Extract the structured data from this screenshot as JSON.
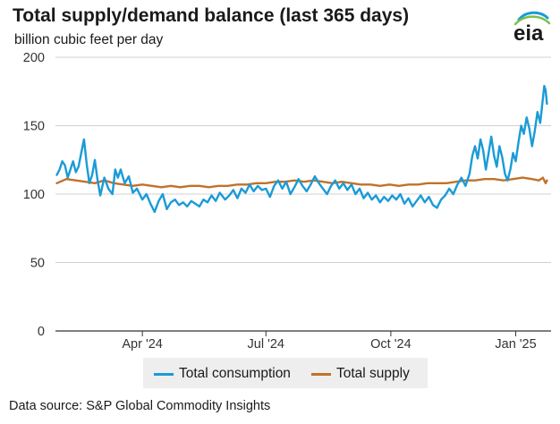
{
  "header": {
    "title": "Total supply/demand balance (last 365 days)",
    "subtitle": "billion cubic feet per day",
    "logo_text": "eia"
  },
  "footer": {
    "source": "Data source: S&P Global Commodity Insights"
  },
  "colors": {
    "consumption": "#1a9bd7",
    "supply": "#c0722a",
    "grid": "#d0d0d0",
    "axis": "#333333",
    "legend_bg": "#eeeeee"
  },
  "chart_data": {
    "type": "line",
    "title": "Total supply/demand balance (last 365 days)",
    "ylabel": "billion cubic feet per day",
    "xlim": [
      "2024-01-28",
      "2025-01-27"
    ],
    "ylim": [
      0,
      200
    ],
    "yticks": [
      0,
      50,
      100,
      150,
      200
    ],
    "xticks": [
      {
        "date": "2024-04-01",
        "label": "Apr '24"
      },
      {
        "date": "2024-07-01",
        "label": "Jul '24"
      },
      {
        "date": "2024-10-01",
        "label": "Oct '24"
      },
      {
        "date": "2025-01-01",
        "label": "Jan '25"
      }
    ],
    "grid": "horizontal",
    "legend_position": "bottom",
    "series": [
      {
        "name": "Total consumption",
        "color": "#1a9bd7",
        "points": [
          [
            "2024-01-29",
            114
          ],
          [
            "2024-01-31",
            118
          ],
          [
            "2024-02-02",
            124
          ],
          [
            "2024-02-04",
            121
          ],
          [
            "2024-02-06",
            112
          ],
          [
            "2024-02-08",
            118
          ],
          [
            "2024-02-10",
            124
          ],
          [
            "2024-02-12",
            116
          ],
          [
            "2024-02-14",
            120
          ],
          [
            "2024-02-16",
            130
          ],
          [
            "2024-02-18",
            140
          ],
          [
            "2024-02-20",
            122
          ],
          [
            "2024-02-22",
            108
          ],
          [
            "2024-02-24",
            114
          ],
          [
            "2024-02-26",
            125
          ],
          [
            "2024-02-28",
            110
          ],
          [
            "2024-03-01",
            99
          ],
          [
            "2024-03-04",
            112
          ],
          [
            "2024-03-07",
            104
          ],
          [
            "2024-03-10",
            100
          ],
          [
            "2024-03-12",
            118
          ],
          [
            "2024-03-14",
            112
          ],
          [
            "2024-03-16",
            118
          ],
          [
            "2024-03-19",
            108
          ],
          [
            "2024-03-22",
            113
          ],
          [
            "2024-03-25",
            101
          ],
          [
            "2024-03-28",
            104
          ],
          [
            "2024-04-01",
            96
          ],
          [
            "2024-04-04",
            100
          ],
          [
            "2024-04-07",
            93
          ],
          [
            "2024-04-10",
            87
          ],
          [
            "2024-04-13",
            95
          ],
          [
            "2024-04-16",
            100
          ],
          [
            "2024-04-19",
            89
          ],
          [
            "2024-04-22",
            94
          ],
          [
            "2024-04-25",
            96
          ],
          [
            "2024-04-28",
            92
          ],
          [
            "2024-05-01",
            94
          ],
          [
            "2024-05-04",
            91
          ],
          [
            "2024-05-07",
            95
          ],
          [
            "2024-05-10",
            93
          ],
          [
            "2024-05-13",
            91
          ],
          [
            "2024-05-16",
            96
          ],
          [
            "2024-05-19",
            94
          ],
          [
            "2024-05-22",
            99
          ],
          [
            "2024-05-25",
            95
          ],
          [
            "2024-05-28",
            101
          ],
          [
            "2024-06-01",
            96
          ],
          [
            "2024-06-04",
            99
          ],
          [
            "2024-06-07",
            103
          ],
          [
            "2024-06-10",
            97
          ],
          [
            "2024-06-13",
            104
          ],
          [
            "2024-06-16",
            101
          ],
          [
            "2024-06-19",
            107
          ],
          [
            "2024-06-22",
            102
          ],
          [
            "2024-06-25",
            106
          ],
          [
            "2024-06-28",
            103
          ],
          [
            "2024-07-01",
            104
          ],
          [
            "2024-07-04",
            98
          ],
          [
            "2024-07-07",
            106
          ],
          [
            "2024-07-10",
            110
          ],
          [
            "2024-07-13",
            104
          ],
          [
            "2024-07-16",
            109
          ],
          [
            "2024-07-19",
            100
          ],
          [
            "2024-07-22",
            105
          ],
          [
            "2024-07-25",
            111
          ],
          [
            "2024-07-28",
            106
          ],
          [
            "2024-07-31",
            102
          ],
          [
            "2024-08-03",
            107
          ],
          [
            "2024-08-06",
            113
          ],
          [
            "2024-08-09",
            108
          ],
          [
            "2024-08-12",
            104
          ],
          [
            "2024-08-15",
            100
          ],
          [
            "2024-08-18",
            106
          ],
          [
            "2024-08-21",
            110
          ],
          [
            "2024-08-24",
            104
          ],
          [
            "2024-08-27",
            108
          ],
          [
            "2024-08-30",
            103
          ],
          [
            "2024-09-02",
            107
          ],
          [
            "2024-09-05",
            100
          ],
          [
            "2024-09-08",
            104
          ],
          [
            "2024-09-11",
            97
          ],
          [
            "2024-09-14",
            101
          ],
          [
            "2024-09-17",
            96
          ],
          [
            "2024-09-20",
            99
          ],
          [
            "2024-09-23",
            94
          ],
          [
            "2024-09-26",
            98
          ],
          [
            "2024-09-29",
            95
          ],
          [
            "2024-10-02",
            99
          ],
          [
            "2024-10-05",
            96
          ],
          [
            "2024-10-08",
            100
          ],
          [
            "2024-10-11",
            93
          ],
          [
            "2024-10-14",
            97
          ],
          [
            "2024-10-17",
            91
          ],
          [
            "2024-10-20",
            95
          ],
          [
            "2024-10-23",
            99
          ],
          [
            "2024-10-26",
            94
          ],
          [
            "2024-10-29",
            98
          ],
          [
            "2024-11-01",
            92
          ],
          [
            "2024-11-04",
            90
          ],
          [
            "2024-11-07",
            96
          ],
          [
            "2024-11-10",
            99
          ],
          [
            "2024-11-13",
            104
          ],
          [
            "2024-11-16",
            100
          ],
          [
            "2024-11-19",
            107
          ],
          [
            "2024-11-22",
            112
          ],
          [
            "2024-11-25",
            106
          ],
          [
            "2024-11-28",
            115
          ],
          [
            "2024-11-30",
            128
          ],
          [
            "2024-12-02",
            135
          ],
          [
            "2024-12-04",
            126
          ],
          [
            "2024-12-06",
            140
          ],
          [
            "2024-12-08",
            132
          ],
          [
            "2024-12-10",
            118
          ],
          [
            "2024-12-12",
            130
          ],
          [
            "2024-12-14",
            142
          ],
          [
            "2024-12-16",
            128
          ],
          [
            "2024-12-18",
            120
          ],
          [
            "2024-12-20",
            135
          ],
          [
            "2024-12-22",
            127
          ],
          [
            "2024-12-24",
            115
          ],
          [
            "2024-12-26",
            110
          ],
          [
            "2024-12-28",
            118
          ],
          [
            "2024-12-30",
            130
          ],
          [
            "2025-01-01",
            124
          ],
          [
            "2025-01-03",
            138
          ],
          [
            "2025-01-05",
            150
          ],
          [
            "2025-01-07",
            144
          ],
          [
            "2025-01-09",
            156
          ],
          [
            "2025-01-11",
            148
          ],
          [
            "2025-01-13",
            135
          ],
          [
            "2025-01-15",
            146
          ],
          [
            "2025-01-17",
            160
          ],
          [
            "2025-01-19",
            152
          ],
          [
            "2025-01-21",
            170
          ],
          [
            "2025-01-22",
            179
          ],
          [
            "2025-01-23",
            176
          ],
          [
            "2025-01-24",
            166
          ]
        ]
      },
      {
        "name": "Total supply",
        "color": "#c0722a",
        "points": [
          [
            "2024-01-29",
            108
          ],
          [
            "2024-02-05",
            111
          ],
          [
            "2024-02-12",
            110
          ],
          [
            "2024-02-19",
            109
          ],
          [
            "2024-02-26",
            108
          ],
          [
            "2024-03-04",
            110
          ],
          [
            "2024-03-11",
            108
          ],
          [
            "2024-03-18",
            107
          ],
          [
            "2024-03-25",
            106
          ],
          [
            "2024-04-01",
            107
          ],
          [
            "2024-04-08",
            106
          ],
          [
            "2024-04-15",
            105
          ],
          [
            "2024-04-22",
            106
          ],
          [
            "2024-04-29",
            105
          ],
          [
            "2024-05-06",
            106
          ],
          [
            "2024-05-13",
            106
          ],
          [
            "2024-05-20",
            105
          ],
          [
            "2024-05-27",
            106
          ],
          [
            "2024-06-03",
            106
          ],
          [
            "2024-06-10",
            107
          ],
          [
            "2024-06-17",
            107
          ],
          [
            "2024-06-24",
            108
          ],
          [
            "2024-07-01",
            108
          ],
          [
            "2024-07-08",
            109
          ],
          [
            "2024-07-15",
            109
          ],
          [
            "2024-07-22",
            110
          ],
          [
            "2024-07-29",
            109
          ],
          [
            "2024-08-05",
            110
          ],
          [
            "2024-08-12",
            109
          ],
          [
            "2024-08-19",
            108
          ],
          [
            "2024-08-26",
            109
          ],
          [
            "2024-09-02",
            108
          ],
          [
            "2024-09-09",
            107
          ],
          [
            "2024-09-16",
            107
          ],
          [
            "2024-09-23",
            106
          ],
          [
            "2024-09-30",
            107
          ],
          [
            "2024-10-07",
            106
          ],
          [
            "2024-10-14",
            107
          ],
          [
            "2024-10-21",
            107
          ],
          [
            "2024-10-28",
            108
          ],
          [
            "2024-11-04",
            108
          ],
          [
            "2024-11-11",
            108
          ],
          [
            "2024-11-18",
            109
          ],
          [
            "2024-11-25",
            110
          ],
          [
            "2024-12-02",
            110
          ],
          [
            "2024-12-09",
            111
          ],
          [
            "2024-12-16",
            111
          ],
          [
            "2024-12-23",
            110
          ],
          [
            "2024-12-30",
            111
          ],
          [
            "2025-01-06",
            112
          ],
          [
            "2025-01-13",
            111
          ],
          [
            "2025-01-18",
            110
          ],
          [
            "2025-01-21",
            112
          ],
          [
            "2025-01-23",
            108
          ],
          [
            "2025-01-24",
            110
          ]
        ]
      }
    ]
  }
}
